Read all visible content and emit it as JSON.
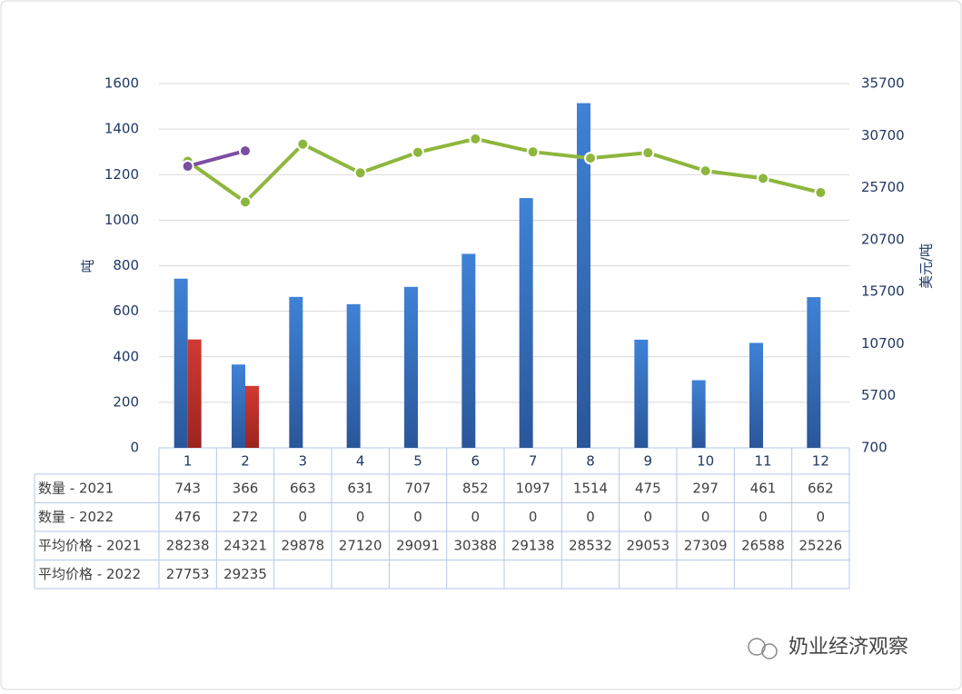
{
  "chart_data": {
    "type": "bar",
    "categories": [
      "1",
      "2",
      "3",
      "4",
      "5",
      "6",
      "7",
      "8",
      "9",
      "10",
      "11",
      "12"
    ],
    "ylabel": "吨",
    "y2label": "美元/吨",
    "ylim": [
      0,
      1600
    ],
    "yticks": [
      0,
      200,
      400,
      600,
      800,
      1000,
      1200,
      1400,
      1600
    ],
    "y2lim": [
      700,
      35700
    ],
    "y2ticks": [
      700,
      5700,
      10700,
      15700,
      20700,
      25700,
      30700,
      35700
    ],
    "grid": true,
    "series": [
      {
        "name": "数量 - 2021",
        "type": "bar",
        "color": "#3b78c9",
        "values": [
          743,
          366,
          663,
          631,
          707,
          852,
          1097,
          1514,
          475,
          297,
          461,
          662
        ]
      },
      {
        "name": "数量 - 2022",
        "type": "bar",
        "color": "#c8332f",
        "values": [
          476,
          272,
          0,
          0,
          0,
          0,
          0,
          0,
          0,
          0,
          0,
          0
        ]
      },
      {
        "name": "平均价格 - 2021",
        "type": "line",
        "axis": "y2",
        "color": "#8db63c",
        "values": [
          28238,
          24321,
          29878,
          27120,
          29091,
          30388,
          29138,
          28532,
          29053,
          27309,
          26588,
          25226
        ]
      },
      {
        "name": "平均价格 - 2022",
        "type": "line",
        "axis": "y2",
        "color": "#7b4fa0",
        "values": [
          27753,
          29235,
          null,
          null,
          null,
          null,
          null,
          null,
          null,
          null,
          null,
          null
        ]
      }
    ],
    "watermark": "奶业经济观察"
  }
}
